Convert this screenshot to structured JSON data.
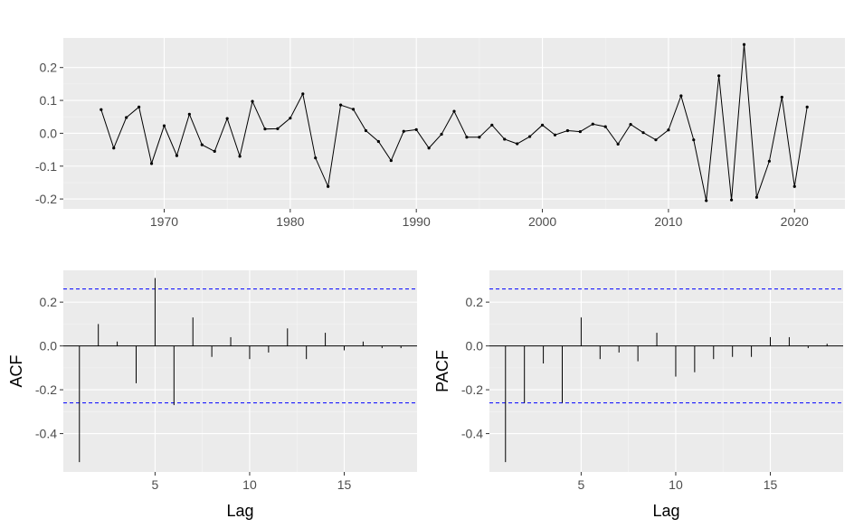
{
  "chart_data": [
    {
      "type": "line",
      "title": "",
      "xlabel": "",
      "ylabel": "",
      "xlim": [
        1962,
        2024
      ],
      "ylim": [
        -0.23,
        0.29
      ],
      "x_ticks": [
        1970,
        1980,
        1990,
        2000,
        2010,
        2020
      ],
      "x_tick_labels": [
        "1970",
        "1980",
        "1990",
        "2000",
        "2010",
        "2020"
      ],
      "y_ticks": [
        -0.2,
        -0.1,
        0.0,
        0.1,
        0.2
      ],
      "y_tick_labels": [
        "-0.2",
        "-0.1",
        "0.0",
        "0.1",
        "0.2"
      ],
      "grid": true,
      "series": [
        {
          "x": [
            1965,
            1966,
            1967,
            1968,
            1969,
            1970,
            1971,
            1972,
            1973,
            1974,
            1975,
            1976,
            1977,
            1978,
            1979,
            1980,
            1981,
            1982,
            1983,
            1984,
            1985,
            1986,
            1987,
            1988,
            1989,
            1990,
            1991,
            1992,
            1993,
            1994,
            1995,
            1996,
            1997,
            1998,
            1999,
            2000,
            2001,
            2002,
            2003,
            2004,
            2005,
            2006,
            2007,
            2008,
            2009,
            2010,
            2011,
            2012,
            2013,
            2014,
            2015,
            2016,
            2017,
            2018,
            2019,
            2020,
            2021
          ],
          "values": [
            0.072,
            -0.045,
            0.048,
            0.08,
            -0.092,
            0.023,
            -0.068,
            0.058,
            -0.035,
            -0.055,
            0.045,
            -0.07,
            0.097,
            0.013,
            0.014,
            0.046,
            0.12,
            -0.075,
            -0.162,
            0.086,
            0.073,
            0.008,
            -0.025,
            -0.083,
            0.006,
            0.011,
            -0.045,
            -0.003,
            0.067,
            -0.012,
            -0.012,
            0.025,
            -0.018,
            -0.032,
            -0.01,
            0.025,
            -0.005,
            0.008,
            0.005,
            0.028,
            0.02,
            -0.033,
            0.027,
            0.002,
            -0.02,
            0.01,
            0.114,
            -0.02,
            -0.205,
            0.175,
            -0.203,
            0.27,
            -0.195,
            -0.085,
            0.11,
            -0.162,
            0.08
          ]
        }
      ]
    },
    {
      "type": "bar",
      "title": "",
      "xlabel": "Lag",
      "ylabel": "ACF",
      "xlim": [
        0.15,
        18.85
      ],
      "ylim": [
        -0.575,
        0.345
      ],
      "x_ticks": [
        5,
        10,
        15
      ],
      "x_tick_labels": [
        "5",
        "10",
        "15"
      ],
      "y_ticks": [
        -0.4,
        -0.2,
        0.0,
        0.2
      ],
      "y_tick_labels": [
        "-0.4",
        "-0.2",
        "0.0",
        "0.2"
      ],
      "grid": true,
      "confidence_bounds": [
        -0.26,
        0.26
      ],
      "x": [
        1,
        2,
        3,
        4,
        5,
        6,
        7,
        8,
        9,
        10,
        11,
        12,
        13,
        14,
        15,
        16,
        17,
        18
      ],
      "values": [
        -0.53,
        0.1,
        0.02,
        -0.17,
        0.31,
        -0.27,
        0.13,
        -0.05,
        0.04,
        -0.06,
        -0.03,
        0.08,
        -0.06,
        0.06,
        -0.02,
        0.02,
        -0.01,
        -0.01
      ]
    },
    {
      "type": "bar",
      "title": "",
      "xlabel": "Lag",
      "ylabel": "PACF",
      "xlim": [
        0.15,
        18.85
      ],
      "ylim": [
        -0.575,
        0.345
      ],
      "x_ticks": [
        5,
        10,
        15
      ],
      "x_tick_labels": [
        "5",
        "10",
        "15"
      ],
      "y_ticks": [
        -0.4,
        -0.2,
        0.0,
        0.2
      ],
      "y_tick_labels": [
        "-0.4",
        "-0.2",
        "0.0",
        "0.2"
      ],
      "grid": true,
      "confidence_bounds": [
        -0.26,
        0.26
      ],
      "x": [
        1,
        2,
        3,
        4,
        5,
        6,
        7,
        8,
        9,
        10,
        11,
        12,
        13,
        14,
        15,
        16,
        17,
        18
      ],
      "values": [
        -0.53,
        -0.26,
        -0.08,
        -0.26,
        0.13,
        -0.06,
        -0.03,
        -0.07,
        0.06,
        -0.14,
        -0.12,
        -0.06,
        -0.05,
        -0.05,
        0.04,
        0.04,
        -0.01,
        0.01
      ]
    }
  ]
}
